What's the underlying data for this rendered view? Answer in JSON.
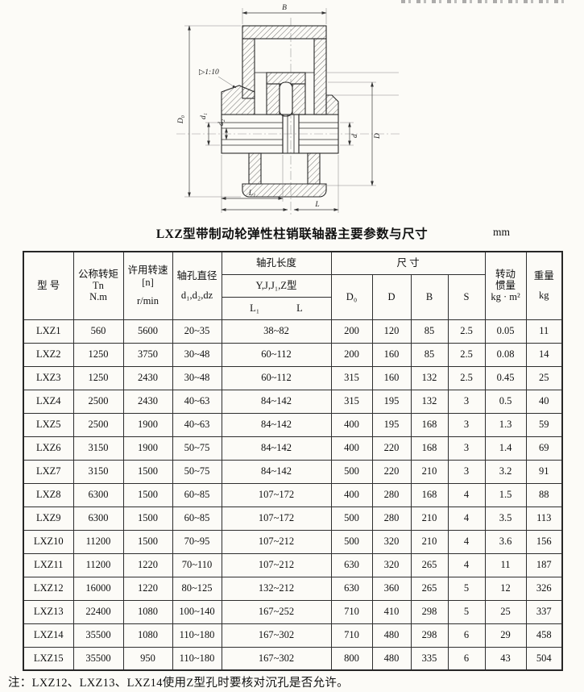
{
  "page": {
    "title": "LXZ型带制动轮弹性柱销联轴器主要参数与尺寸",
    "unit": "mm",
    "note": "注：LXZ12、LXZ13、LXZ14使用Z型孔时要核对沉孔是否允许。"
  },
  "diagram": {
    "labels": {
      "B": "B",
      "D0": "D₀",
      "d1": "d₁",
      "d2": "d₂",
      "d": "d",
      "D": "D",
      "L1": "L₁",
      "L": "L",
      "taper": "▷1:10"
    }
  },
  "table": {
    "headers": {
      "model": "型  号",
      "torque_l1": "公称转矩Tn",
      "torque_l2": "N.m",
      "speed_l1": "许用转速",
      "speed_l2": "[n]",
      "speed_l3": "r/min",
      "bore_l1": "轴孔直径",
      "bore_l2": "d₁,d₂,dz",
      "length_group": "轴孔长度",
      "length_types": "Y,J,J₁,Z型",
      "length_L1": "L₁",
      "length_L": "L",
      "size_group": "尺  寸",
      "col_D0": "D₀",
      "col_D": "D",
      "col_B": "B",
      "col_S": "S",
      "inertia_l1": "转动",
      "inertia_l2": "惯量",
      "inertia_l3": "kg · m²",
      "weight_l1": "重量",
      "weight_l2": "kg"
    },
    "rows": [
      [
        "LXZ1",
        "560",
        "5600",
        "20~35",
        "38~82",
        "200",
        "120",
        "85",
        "2.5",
        "0.05",
        "11"
      ],
      [
        "LXZ2",
        "1250",
        "3750",
        "30~48",
        "60~112",
        "200",
        "160",
        "85",
        "2.5",
        "0.08",
        "14"
      ],
      [
        "LXZ3",
        "1250",
        "2430",
        "30~48",
        "60~112",
        "315",
        "160",
        "132",
        "2.5",
        "0.45",
        "25"
      ],
      [
        "LXZ4",
        "2500",
        "2430",
        "40~63",
        "84~142",
        "315",
        "195",
        "132",
        "3",
        "0.5",
        "40"
      ],
      [
        "LXZ5",
        "2500",
        "1900",
        "40~63",
        "84~142",
        "400",
        "195",
        "168",
        "3",
        "1.3",
        "59"
      ],
      [
        "LXZ6",
        "3150",
        "1900",
        "50~75",
        "84~142",
        "400",
        "220",
        "168",
        "3",
        "1.4",
        "69"
      ],
      [
        "LXZ7",
        "3150",
        "1500",
        "50~75",
        "84~142",
        "500",
        "220",
        "210",
        "3",
        "3.2",
        "91"
      ],
      [
        "LXZ8",
        "6300",
        "1500",
        "60~85",
        "107~172",
        "400",
        "280",
        "168",
        "4",
        "1.5",
        "88"
      ],
      [
        "LXZ9",
        "6300",
        "1500",
        "60~85",
        "107~172",
        "500",
        "280",
        "210",
        "4",
        "3.5",
        "113"
      ],
      [
        "LXZ10",
        "11200",
        "1500",
        "70~95",
        "107~212",
        "500",
        "320",
        "210",
        "4",
        "3.6",
        "156"
      ],
      [
        "LXZ11",
        "11200",
        "1220",
        "70~110",
        "107~212",
        "630",
        "320",
        "265",
        "4",
        "11",
        "187"
      ],
      [
        "LXZ12",
        "16000",
        "1220",
        "80~125",
        "132~212",
        "630",
        "360",
        "265",
        "5",
        "12",
        "326"
      ],
      [
        "LXZ13",
        "22400",
        "1080",
        "100~140",
        "167~252",
        "710",
        "410",
        "298",
        "5",
        "25",
        "337"
      ],
      [
        "LXZ14",
        "35500",
        "1080",
        "110~180",
        "167~302",
        "710",
        "480",
        "298",
        "6",
        "29",
        "458"
      ],
      [
        "LXZ15",
        "35500",
        "950",
        "110~180",
        "167~302",
        "800",
        "480",
        "335",
        "6",
        "43",
        "504"
      ]
    ]
  }
}
